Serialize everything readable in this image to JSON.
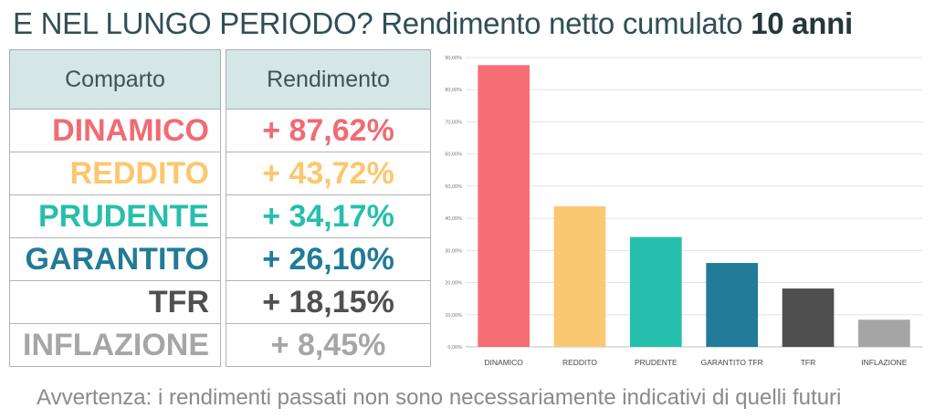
{
  "title": {
    "main": "E NEL LUNGO PERIODO? Rendimento netto cumulato ",
    "bold": "10 anni"
  },
  "table": {
    "col1_header": "Comparto",
    "col2_header": "Rendimento",
    "rows": [
      {
        "name": "DINAMICO",
        "value": "+ 87,62%",
        "color": "#f06b73"
      },
      {
        "name": "REDDITO",
        "value": "+ 43,72%",
        "color": "#fcc76f"
      },
      {
        "name": "PRUDENTE",
        "value": "+ 34,17%",
        "color": "#26bfac"
      },
      {
        "name": "GARANTITO",
        "value": "+ 26,10%",
        "color": "#217a98"
      },
      {
        "name": "TFR",
        "value": "+ 18,15%",
        "color": "#505050"
      },
      {
        "name": "INFLAZIONE",
        "value": "+ 8,45%",
        "color": "#a6a6a6"
      }
    ]
  },
  "chart_data": {
    "type": "bar",
    "categories": [
      "DINAMICO",
      "REDDITO",
      "PRUDENTE",
      "GARANTITO TFR",
      "TFR",
      "INFLAZIONE"
    ],
    "values": [
      87.62,
      43.72,
      34.17,
      26.1,
      18.15,
      8.45
    ],
    "colors": [
      "#f66d75",
      "#fbc872",
      "#25c0ad",
      "#217b99",
      "#4f4f4f",
      "#a5a5a5"
    ],
    "ylim": [
      0,
      90
    ],
    "yticks": [
      "0,00%",
      "10,00%",
      "20,00%",
      "30,00%",
      "40,00%",
      "50,00%",
      "60,00%",
      "70,00%",
      "80,00%",
      "90,00%"
    ],
    "grid": true
  },
  "note": "Avvertenza: i rendimenti passati non sono necessariamente indicativi di quelli futuri"
}
